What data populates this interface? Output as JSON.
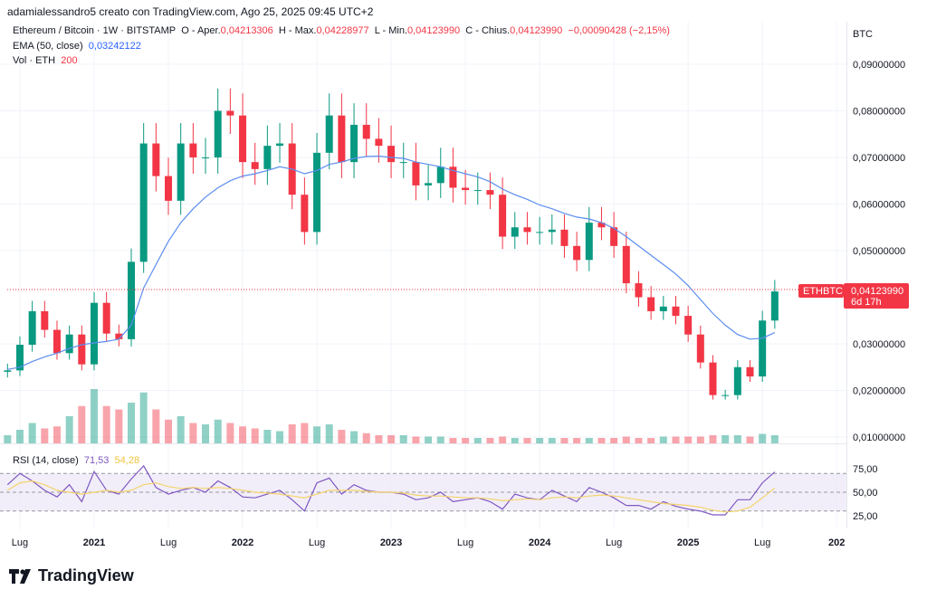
{
  "credit": "adamialessandro5 creato con TradingView.com, Ago 25, 2025 09:45 UTC+2",
  "legend": {
    "symbol": "Ethereum / Bitcoin · 1W · BITSTAMP",
    "open_label": "O - Aper.",
    "open": "0,04213306",
    "high_label": "H - Max.",
    "high": "0,04228977",
    "low_label": "L - Min.",
    "low": "0,04123990",
    "close_label": "C - Chius.",
    "close": "0,04123990",
    "change": "−0,00090428 (−2,15%)",
    "ema_label": "EMA (50, close)",
    "ema_value": "0,03242122",
    "vol_label": "Vol · ETH",
    "vol_value": "200",
    "rsi_label": "RSI (14, close)",
    "rsi_value": "71,53",
    "rsi_ma_value": "54,28"
  },
  "price_tag": {
    "symbol": "ETHBTC",
    "price": "0,04123990",
    "countdown": "6d 17h"
  },
  "currency": "BTC",
  "logo": "TradingView",
  "colors": {
    "up": "#089981",
    "down": "#f23645",
    "ema": "#5b8def",
    "rsi": "#7e57c2",
    "rsi_ma": "#f5d36a",
    "rsi_band": "#ede7f6"
  },
  "chart_data": {
    "type": "candlestick",
    "price_axis_ticks": [
      "0,09000000",
      "0,08000000",
      "0,07000000",
      "0,06000000",
      "0,05000000",
      "0,03000000",
      "0,02000000",
      "0,01000000"
    ],
    "price_axis_values": [
      0.09,
      0.08,
      0.07,
      0.06,
      0.05,
      0.03,
      0.02,
      0.01
    ],
    "rsi_axis_ticks": [
      "75,00",
      "50,00",
      "25,00"
    ],
    "rsi_axis_values": [
      75,
      50,
      25
    ],
    "x_ticks": [
      {
        "label": "Lug",
        "date": "2020-07",
        "bold": false
      },
      {
        "label": "2021",
        "date": "2021-01",
        "bold": true
      },
      {
        "label": "Lug",
        "date": "2021-07",
        "bold": false
      },
      {
        "label": "2022",
        "date": "2022-01",
        "bold": true
      },
      {
        "label": "Lug",
        "date": "2022-07",
        "bold": false
      },
      {
        "label": "2023",
        "date": "2023-01",
        "bold": true
      },
      {
        "label": "Lug",
        "date": "2023-07",
        "bold": false
      },
      {
        "label": "2024",
        "date": "2024-01",
        "bold": true
      },
      {
        "label": "Lug",
        "date": "2024-07",
        "bold": false
      },
      {
        "label": "2025",
        "date": "2025-01",
        "bold": true
      },
      {
        "label": "Lug",
        "date": "2025-07",
        "bold": false
      },
      {
        "label": "202",
        "date": "2026-01",
        "bold": true
      }
    ],
    "start": "2020-06",
    "closes": [
      0.0243,
      0.0298,
      0.037,
      0.033,
      0.028,
      0.032,
      0.0256,
      0.0388,
      0.0322,
      0.031,
      0.0476,
      0.073,
      0.066,
      0.0607,
      0.073,
      0.07,
      0.07,
      0.08,
      0.079,
      0.069,
      0.0675,
      0.0725,
      0.073,
      0.062,
      0.054,
      0.071,
      0.079,
      0.069,
      0.077,
      0.074,
      0.0725,
      0.069,
      0.069,
      0.064,
      0.0645,
      0.068,
      0.0635,
      0.063,
      0.063,
      0.062,
      0.053,
      0.055,
      0.054,
      0.054,
      0.0545,
      0.051,
      0.048,
      0.056,
      0.055,
      0.051,
      0.043,
      0.04,
      0.037,
      0.038,
      0.036,
      0.032,
      0.026,
      0.019,
      0.019,
      0.025,
      0.023,
      0.035,
      0.04124
    ],
    "first_open": 0.024,
    "ema": [
      0.0245,
      0.025,
      0.0262,
      0.0272,
      0.028,
      0.029,
      0.0298,
      0.0302,
      0.0305,
      0.031,
      0.034,
      0.042,
      0.047,
      0.052,
      0.056,
      0.059,
      0.0615,
      0.0635,
      0.065,
      0.066,
      0.0665,
      0.0672,
      0.068,
      0.0675,
      0.0665,
      0.0672,
      0.0685,
      0.069,
      0.0698,
      0.0702,
      0.0703,
      0.07,
      0.0698,
      0.069,
      0.0685,
      0.068,
      0.0672,
      0.0665,
      0.0658,
      0.0648,
      0.0632,
      0.062,
      0.061,
      0.0598,
      0.059,
      0.058,
      0.0572,
      0.0568,
      0.056,
      0.0548,
      0.053,
      0.051,
      0.049,
      0.047,
      0.045,
      0.0425,
      0.0395,
      0.0365,
      0.034,
      0.032,
      0.031,
      0.0312,
      0.0324
    ],
    "volume": [
      12,
      20,
      30,
      22,
      25,
      40,
      55,
      80,
      55,
      50,
      60,
      75,
      50,
      35,
      40,
      30,
      28,
      35,
      30,
      25,
      22,
      20,
      18,
      28,
      30,
      25,
      28,
      20,
      18,
      15,
      12,
      12,
      12,
      10,
      10,
      10,
      8,
      8,
      8,
      8,
      10,
      8,
      8,
      8,
      8,
      8,
      8,
      8,
      8,
      8,
      10,
      8,
      8,
      10,
      10,
      10,
      10,
      12,
      12,
      12,
      10,
      14,
      12
    ],
    "rsi": [
      58,
      70,
      62,
      52,
      45,
      58,
      40,
      72,
      52,
      48,
      64,
      78,
      55,
      48,
      52,
      55,
      50,
      62,
      55,
      45,
      44,
      48,
      52,
      42,
      30,
      60,
      65,
      48,
      58,
      52,
      50,
      50,
      48,
      42,
      44,
      50,
      40,
      42,
      44,
      40,
      32,
      48,
      44,
      42,
      52,
      46,
      40,
      55,
      50,
      44,
      36,
      36,
      32,
      40,
      35,
      32,
      30,
      26,
      26,
      42,
      42,
      60,
      71.53
    ],
    "rsi_ma": [
      52,
      60,
      62,
      58,
      52,
      50,
      48,
      50,
      52,
      50,
      52,
      58,
      60,
      56,
      54,
      55,
      54,
      55,
      54,
      52,
      50,
      49,
      48,
      46,
      44,
      48,
      52,
      52,
      52,
      51,
      50,
      50,
      49,
      47,
      46,
      46,
      45,
      44,
      44,
      43,
      41,
      42,
      43,
      42,
      44,
      45,
      44,
      46,
      47,
      46,
      44,
      42,
      40,
      38,
      37,
      36,
      34,
      31,
      29,
      30,
      34,
      44,
      54.28
    ],
    "rsi_bands": [
      70,
      50,
      30
    ]
  }
}
